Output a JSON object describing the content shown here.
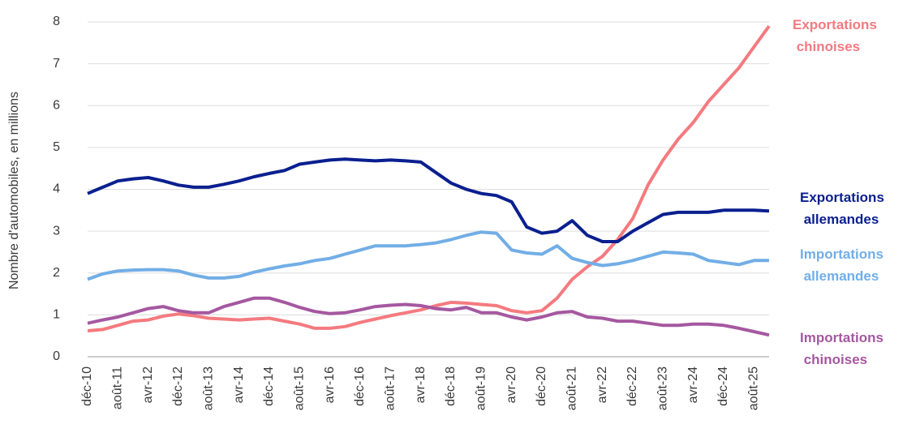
{
  "chart_data": {
    "type": "line",
    "y_label": "Nombre d'automobiles, en millions",
    "categories": [
      "déc-10",
      null,
      "août-11",
      null,
      "avr-12",
      null,
      "déc-12",
      null,
      "août-13",
      null,
      "avr-14",
      null,
      "déc-14",
      null,
      "août-15",
      null,
      "avr-16",
      null,
      "déc-16",
      null,
      "août-17",
      null,
      "avr-18",
      null,
      "déc-18",
      null,
      "août-19",
      null,
      "avr-20",
      null,
      "déc-20",
      null,
      "août-21",
      null,
      "avr-22",
      null,
      "déc-22",
      null,
      "août-23",
      null,
      "avr-24",
      null,
      "déc-24",
      null,
      "août-25",
      null
    ],
    "ylim": [
      0,
      8
    ],
    "yticks": [
      0,
      1,
      2,
      3,
      4,
      5,
      6,
      7,
      8
    ],
    "grid": true,
    "series": [
      {
        "name": "Exportations chinoises",
        "color": "#f47a7f",
        "values": [
          0.62,
          0.65,
          0.75,
          0.85,
          0.88,
          0.97,
          1.02,
          0.98,
          0.92,
          0.9,
          0.88,
          0.9,
          0.92,
          0.85,
          0.78,
          0.68,
          0.68,
          0.72,
          0.82,
          0.9,
          0.98,
          1.05,
          1.12,
          1.22,
          1.3,
          1.28,
          1.25,
          1.22,
          1.1,
          1.05,
          1.1,
          1.4,
          1.85,
          2.15,
          2.4,
          2.8,
          3.3,
          4.1,
          4.7,
          5.2,
          5.6,
          6.1,
          6.5,
          6.9,
          7.4,
          7.9
        ]
      },
      {
        "name": "Exportations allemandes",
        "color": "#0a1f8f",
        "values": [
          3.9,
          4.05,
          4.2,
          4.25,
          4.28,
          4.2,
          4.1,
          4.05,
          4.05,
          4.12,
          4.2,
          4.3,
          4.38,
          4.45,
          4.6,
          4.65,
          4.7,
          4.72,
          4.7,
          4.68,
          4.7,
          4.68,
          4.65,
          4.4,
          4.15,
          4.0,
          3.9,
          3.85,
          3.7,
          3.1,
          2.95,
          3.0,
          3.25,
          2.9,
          2.75,
          2.75,
          3.0,
          3.2,
          3.4,
          3.45,
          3.45,
          3.45,
          3.5,
          3.5,
          3.5,
          3.48
        ]
      },
      {
        "name": "Importations allemandes",
        "color": "#72aee6",
        "values": [
          1.85,
          1.98,
          2.05,
          2.07,
          2.08,
          2.08,
          2.05,
          1.95,
          1.88,
          1.88,
          1.92,
          2.02,
          2.1,
          2.17,
          2.22,
          2.3,
          2.35,
          2.45,
          2.55,
          2.65,
          2.65,
          2.65,
          2.68,
          2.72,
          2.8,
          2.9,
          2.98,
          2.95,
          2.55,
          2.48,
          2.45,
          2.65,
          2.35,
          2.25,
          2.18,
          2.22,
          2.3,
          2.4,
          2.5,
          2.48,
          2.45,
          2.3,
          2.25,
          2.2,
          2.3,
          2.3
        ]
      },
      {
        "name": "Importations chinoises",
        "color": "#a558a0",
        "values": [
          0.8,
          0.88,
          0.95,
          1.05,
          1.15,
          1.2,
          1.1,
          1.05,
          1.05,
          1.2,
          1.3,
          1.4,
          1.4,
          1.3,
          1.18,
          1.08,
          1.03,
          1.05,
          1.12,
          1.2,
          1.23,
          1.25,
          1.22,
          1.15,
          1.12,
          1.18,
          1.05,
          1.05,
          0.95,
          0.88,
          0.95,
          1.05,
          1.08,
          0.95,
          0.92,
          0.85,
          0.85,
          0.8,
          0.75,
          0.75,
          0.78,
          0.78,
          0.75,
          0.68,
          0.6,
          0.52
        ]
      }
    ]
  }
}
